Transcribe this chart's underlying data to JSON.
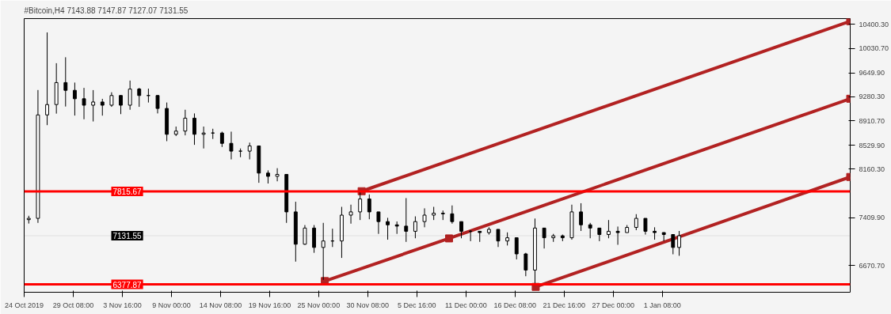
{
  "chart_data": {
    "type": "candlestick",
    "title": "#Bitcoin,H4  7143.88 7147.87 7127.07 7131.55",
    "x": [
      "2019-10-24T12:00",
      "2019-10-25T12:00",
      "2019-10-26T12:00",
      "2019-10-27T12:00",
      "2019-10-28T12:00",
      "2019-10-29T12:00",
      "2019-10-30T12:00",
      "2019-10-31T12:00",
      "2019-11-01T12:00",
      "2019-11-02T12:00",
      "2019-11-03T12:00",
      "2019-11-04T12:00",
      "2019-11-05T12:00",
      "2019-11-06T12:00",
      "2019-11-07T12:00",
      "2019-11-08T12:00",
      "2019-11-09T12:00",
      "2019-11-10T12:00",
      "2019-11-11T12:00",
      "2019-11-12T12:00",
      "2019-11-13T12:00",
      "2019-11-14T12:00",
      "2019-11-15T12:00",
      "2019-11-16T12:00",
      "2019-11-17T12:00",
      "2019-11-18T12:00",
      "2019-11-19T12:00",
      "2019-11-20T12:00",
      "2019-11-21T12:00",
      "2019-11-22T12:00",
      "2019-11-23T12:00",
      "2019-11-24T12:00",
      "2019-11-25T12:00",
      "2019-11-26T12:00",
      "2019-11-27T12:00",
      "2019-11-28T12:00",
      "2019-11-29T12:00",
      "2019-11-30T12:00",
      "2019-12-01T12:00",
      "2019-12-02T12:00",
      "2019-12-03T12:00",
      "2019-12-04T12:00",
      "2019-12-05T12:00",
      "2019-12-06T12:00",
      "2019-12-07T12:00",
      "2019-12-08T12:00",
      "2019-12-09T12:00",
      "2019-12-10T12:00",
      "2019-12-11T12:00",
      "2019-12-12T12:00",
      "2019-12-13T12:00",
      "2019-12-14T12:00",
      "2019-12-15T12:00",
      "2019-12-16T12:00",
      "2019-12-17T12:00",
      "2019-12-18T12:00",
      "2019-12-19T12:00",
      "2019-12-20T12:00",
      "2019-12-21T12:00",
      "2019-12-22T12:00",
      "2019-12-23T12:00",
      "2019-12-24T12:00",
      "2019-12-25T12:00",
      "2019-12-26T12:00",
      "2019-12-27T12:00",
      "2019-12-28T12:00",
      "2019-12-29T12:00",
      "2019-12-30T12:00",
      "2019-12-31T12:00",
      "2020-01-01T12:00",
      "2020-01-02T12:00",
      "2020-01-03T04:00"
    ],
    "ohlc": [
      [
        7380,
        7440,
        7320,
        7400
      ],
      [
        7400,
        9385,
        7330,
        9000
      ],
      [
        9000,
        10276,
        8842,
        9160
      ],
      [
        9160,
        9800,
        9020,
        9500
      ],
      [
        9500,
        9892,
        9130,
        9380
      ],
      [
        9380,
        9500,
        8990,
        9250
      ],
      [
        9250,
        9418,
        8933,
        9150
      ],
      [
        9150,
        9384,
        8899,
        9200
      ],
      [
        9200,
        9249,
        8989,
        9150
      ],
      [
        9150,
        9350,
        9125,
        9300
      ],
      [
        9300,
        9305,
        9012,
        9150
      ],
      [
        9150,
        9531,
        9080,
        9400
      ],
      [
        9400,
        9418,
        9125,
        9300
      ],
      [
        9300,
        9407,
        9192,
        9300
      ],
      [
        9300,
        9305,
        9023,
        9100
      ],
      [
        9100,
        9192,
        8594,
        8700
      ],
      [
        8700,
        8820,
        8673,
        8750
      ],
      [
        8750,
        9080,
        8684,
        8950
      ],
      [
        8950,
        9023,
        8537,
        8700
      ],
      [
        8700,
        8820,
        8481,
        8720
      ],
      [
        8720,
        8786,
        8628,
        8720
      ],
      [
        8720,
        8741,
        8504,
        8560
      ],
      [
        8560,
        8741,
        8312,
        8440
      ],
      [
        8440,
        8481,
        8346,
        8440
      ],
      [
        8440,
        8571,
        8312,
        8520
      ],
      [
        8520,
        8520,
        7950,
        8100
      ],
      [
        8100,
        8142,
        7939,
        8050
      ],
      [
        8050,
        8176,
        7973,
        8080
      ],
      [
        8080,
        8080,
        7330,
        7500
      ],
      [
        7500,
        7657,
        6731,
        7000
      ],
      [
        7000,
        7296,
        6990,
        7250
      ],
      [
        7250,
        7296,
        6867,
        6950
      ],
      [
        6950,
        7330,
        6449,
        7050
      ],
      [
        7050,
        7240,
        6957,
        7050
      ],
      [
        7050,
        7578,
        6788,
        7450
      ],
      [
        7450,
        7612,
        7318,
        7500
      ],
      [
        7500,
        7826,
        7374,
        7700
      ],
      [
        7700,
        7770,
        7386,
        7500
      ],
      [
        7500,
        7500,
        7160,
        7350
      ],
      [
        7350,
        7408,
        7070,
        7300
      ],
      [
        7300,
        7352,
        7160,
        7280
      ],
      [
        7280,
        7713,
        7036,
        7200
      ],
      [
        7200,
        7431,
        7092,
        7350
      ],
      [
        7350,
        7555,
        7262,
        7450
      ],
      [
        7450,
        7578,
        7374,
        7480
      ],
      [
        7480,
        7521,
        7374,
        7470
      ],
      [
        7470,
        7600,
        7318,
        7350
      ],
      [
        7350,
        7350,
        7092,
        7200
      ],
      [
        7200,
        7217,
        7047,
        7200
      ],
      [
        7200,
        7205,
        7036,
        7180
      ],
      [
        7180,
        7262,
        7149,
        7230
      ],
      [
        7230,
        7230,
        6957,
        7050
      ],
      [
        7050,
        7183,
        6980,
        7100
      ],
      [
        7100,
        7104,
        6765,
        6850
      ],
      [
        6850,
        6867,
        6505,
        6600
      ],
      [
        6600,
        7397,
        6370,
        7250
      ],
      [
        7250,
        7250,
        6934,
        7100
      ],
      [
        7100,
        7160,
        7036,
        7130
      ],
      [
        7130,
        7149,
        7047,
        7100
      ],
      [
        7100,
        7612,
        7070,
        7500
      ],
      [
        7500,
        7634,
        7205,
        7300
      ],
      [
        7300,
        7330,
        7092,
        7250
      ],
      [
        7250,
        7250,
        7047,
        7150
      ],
      [
        7150,
        7374,
        7092,
        7200
      ],
      [
        7200,
        7273,
        6991,
        7180
      ],
      [
        7180,
        7296,
        7180,
        7260
      ],
      [
        7260,
        7465,
        7217,
        7400
      ],
      [
        7400,
        7400,
        7149,
        7200
      ],
      [
        7200,
        7262,
        7070,
        7180
      ],
      [
        7180,
        7183,
        7047,
        7150
      ],
      [
        7150,
        7150,
        6844,
        6950
      ],
      [
        6950,
        7205,
        6821,
        7131.55
      ]
    ],
    "color": "#000000",
    "series": [
      {
        "type": "line",
        "color": "#b22222",
        "x": [
          "2019-11-29T16:00",
          "2020-01-21T18:00"
        ],
        "values": [
          7820,
          10450
        ]
      },
      {
        "type": "line",
        "color": "#b22222",
        "x": [
          "2019-11-25T16:00",
          "2019-12-09T04:00",
          "2020-01-21T18:00"
        ],
        "values": [
          6430,
          7090,
          9250
        ]
      },
      {
        "type": "line",
        "color": "#b22222",
        "x": [
          "2019-12-18T14:00",
          "2020-01-21T18:00"
        ],
        "values": [
          6340,
          8040
        ]
      }
    ],
    "marker": "square",
    "ref_lines": [
      {
        "axis": "y",
        "value": 7815.67,
        "label": "7815.67",
        "color": "#ff0000"
      },
      {
        "axis": "y",
        "value": 6377.87,
        "label": "6377.87",
        "color": "#ff0000"
      },
      {
        "axis": "y",
        "value": 7131.55,
        "label": "7131.55",
        "color": "#000000"
      }
    ],
    "xlim": [
      "2019-10-24T00:00",
      "2020-01-21T18:00"
    ],
    "xticks": [
      {
        "value": "2019-10-24T00:00",
        "label": "24 Oct 2019"
      },
      {
        "value": "2019-10-29T08:00",
        "label": "29 Oct 08:00"
      },
      {
        "value": "2019-11-03T16:00",
        "label": "3 Nov 16:00"
      },
      {
        "value": "2019-11-09T00:00",
        "label": "9 Nov 00:00"
      },
      {
        "value": "2019-11-14T08:00",
        "label": "14 Nov 08:00"
      },
      {
        "value": "2019-11-19T16:00",
        "label": "19 Nov 16:00"
      },
      {
        "value": "2019-11-25T00:00",
        "label": "25 Nov 00:00"
      },
      {
        "value": "2019-11-30T08:00",
        "label": "30 Nov 08:00"
      },
      {
        "value": "2019-12-05T16:00",
        "label": "5 Dec 16:00"
      },
      {
        "value": "2019-12-11T00:00",
        "label": "11 Dec 00:00"
      },
      {
        "value": "2019-12-16T08:00",
        "label": "16 Dec 08:00"
      },
      {
        "value": "2019-12-21T16:00",
        "label": "21 Dec 16:00"
      },
      {
        "value": "2019-12-27T00:00",
        "label": "27 Dec 00:00"
      },
      {
        "value": "2020-01-01T08:00",
        "label": "1 Jan 08:00"
      }
    ],
    "ylim": [
      6257,
      10490
    ],
    "yticks": [
      {
        "value": 10400.3,
        "label": "10400.30"
      },
      {
        "value": 10030.7,
        "label": "10030.70"
      },
      {
        "value": 9649.9,
        "label": "9649.90"
      },
      {
        "value": 9280.3,
        "label": "9280.30"
      },
      {
        "value": 8910.7,
        "label": "8910.70"
      },
      {
        "value": 8529.9,
        "label": "8529.90"
      },
      {
        "value": 8160.3,
        "label": "8160.30"
      },
      {
        "value": 7409.9,
        "label": "7409.90"
      },
      {
        "value": 6670.7,
        "label": "6670.70"
      }
    ]
  }
}
